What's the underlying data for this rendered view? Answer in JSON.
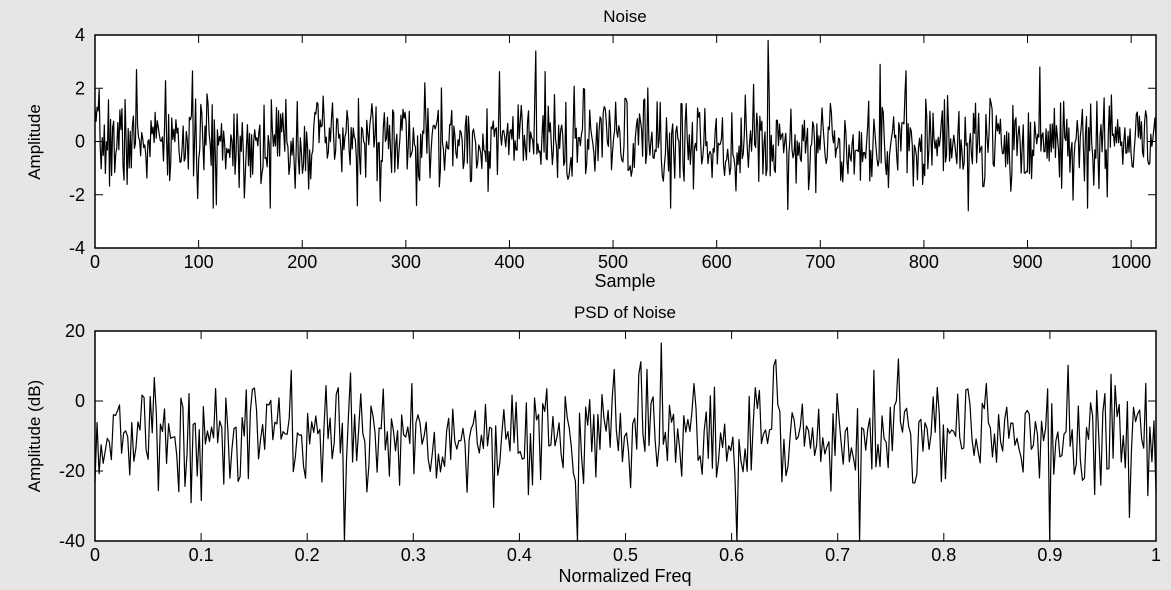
{
  "chart_data": [
    {
      "type": "line",
      "title": "Noise",
      "xlabel": "Sample",
      "ylabel": "Amplitude",
      "xlim": [
        0,
        1024
      ],
      "ylim": [
        -4,
        4
      ],
      "xticks": [
        0,
        100,
        200,
        300,
        400,
        500,
        600,
        700,
        800,
        900,
        1000
      ],
      "yticks": [
        -4,
        -2,
        0,
        2,
        4
      ],
      "grid": false,
      "n_points": 1024,
      "seed": 7,
      "std": 0.85,
      "peaks": [
        {
          "x": 40,
          "y": 2.7
        },
        {
          "x": 114,
          "y": -2.5
        },
        {
          "x": 169,
          "y": -2.5
        },
        {
          "x": 310,
          "y": -2.4
        },
        {
          "x": 425,
          "y": 3.4
        },
        {
          "x": 556,
          "y": -2.5
        },
        {
          "x": 650,
          "y": 3.8
        },
        {
          "x": 758,
          "y": 2.9
        },
        {
          "x": 843,
          "y": -2.6
        },
        {
          "x": 912,
          "y": 2.8
        },
        {
          "x": 958,
          "y": -2.5
        }
      ]
    },
    {
      "type": "line",
      "title": "PSD of Noise",
      "xlabel": "Normalized Freq",
      "ylabel": "Amplitude (dB)",
      "xlim": [
        0,
        1
      ],
      "ylim": [
        -40,
        20
      ],
      "xticks": [
        0,
        0.1,
        0.2,
        0.3,
        0.4,
        0.5,
        0.6,
        0.7,
        0.8,
        0.9,
        1
      ],
      "xticklabels": [
        "0",
        "0.1",
        "0.2",
        "0.3",
        "0.4",
        "0.5",
        "0.6",
        "0.7",
        "0.8",
        "0.9",
        "1"
      ],
      "yticks": [
        -40,
        -20,
        0,
        20
      ],
      "grid": false,
      "n_points": 520,
      "seed": 13,
      "mean": -10,
      "std": 8,
      "peaks": [
        {
          "x": 0.235,
          "y": -40
        },
        {
          "x": 0.24,
          "y": 8
        },
        {
          "x": 0.455,
          "y": -40
        },
        {
          "x": 0.49,
          "y": 9
        },
        {
          "x": 0.52,
          "y": 9
        },
        {
          "x": 0.605,
          "y": -40
        },
        {
          "x": 0.64,
          "y": 10
        },
        {
          "x": 0.72,
          "y": -40
        },
        {
          "x": 0.757,
          "y": 12
        },
        {
          "x": 0.84,
          "y": 5
        },
        {
          "x": 0.9,
          "y": -40
        },
        {
          "x": 0.99,
          "y": 5
        }
      ]
    }
  ]
}
